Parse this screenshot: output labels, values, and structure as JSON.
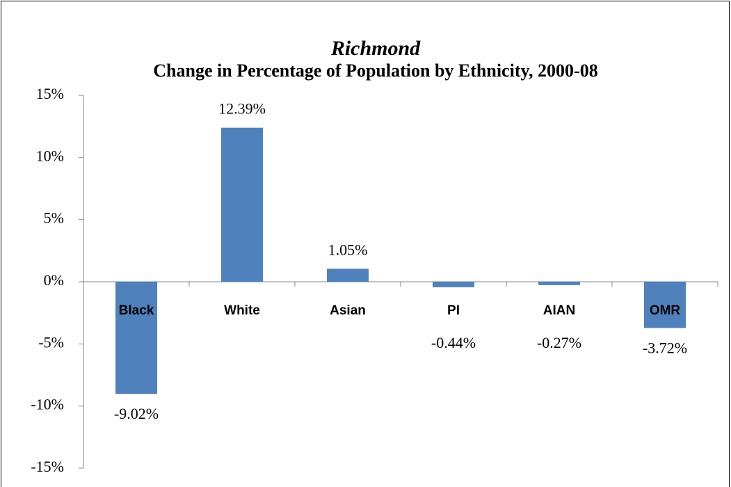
{
  "chart_data": {
    "type": "bar",
    "title": "Richmond",
    "subtitle": "Change in Percentage of Population by Ethnicity, 2000-08",
    "categories": [
      "Black",
      "White",
      "Asian",
      "PI",
      "AIAN",
      "OMR"
    ],
    "values": [
      -9.02,
      12.39,
      1.05,
      -0.44,
      -0.27,
      -3.72
    ],
    "value_labels": [
      "-9.02%",
      "12.39%",
      "1.05%",
      "-0.44%",
      "-0.27%",
      "-3.72%"
    ],
    "color": "#4f81bd",
    "ylim": [
      -15,
      15
    ],
    "yticks": [
      {
        "value": -15,
        "label": "-15%"
      },
      {
        "value": -10,
        "label": "-10%"
      },
      {
        "value": -5,
        "label": "-5%"
      },
      {
        "value": 0,
        "label": "0%"
      },
      {
        "value": 5,
        "label": "5%"
      },
      {
        "value": 10,
        "label": "10%"
      },
      {
        "value": 15,
        "label": "15%"
      }
    ],
    "grid": false
  }
}
